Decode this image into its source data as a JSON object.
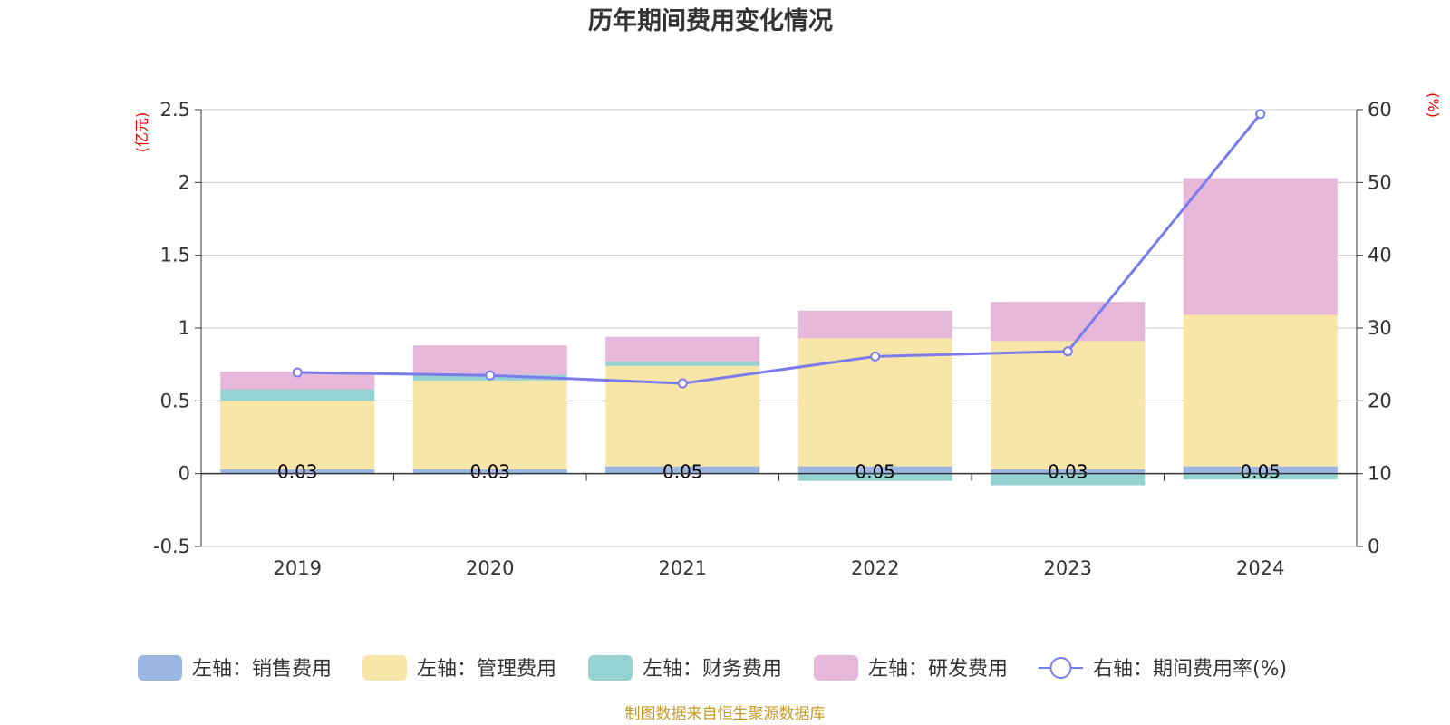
{
  "title": "历年期间费用变化情况",
  "source": "制图数据来自恒生聚源数据库",
  "chart_data": {
    "type": "bar",
    "stacked": true,
    "title": "历年期间费用变化情况",
    "categories": [
      "2019",
      "2020",
      "2021",
      "2022",
      "2023",
      "2024"
    ],
    "left_axis": {
      "unit": "(亿元)",
      "range": [
        -0.5,
        2.5
      ],
      "ticks": [
        "-0.5",
        "0",
        "0.5",
        "1",
        "1.5",
        "2",
        "2.5"
      ],
      "unit_color": "#e60000"
    },
    "right_axis": {
      "unit": "(%)",
      "range": [
        0,
        60
      ],
      "ticks": [
        "0",
        "10",
        "20",
        "30",
        "40",
        "50",
        "60"
      ],
      "unit_color": "#e60000"
    },
    "series": [
      {
        "name": "左轴：销售费用",
        "axis": "left",
        "type": "bar",
        "color": "#9bb6e2",
        "values": [
          0.03,
          0.03,
          0.05,
          0.05,
          0.03,
          0.05
        ],
        "labels": [
          "0.03",
          "0.03",
          "0.05",
          "0.05",
          "0.03",
          "0.05"
        ]
      },
      {
        "name": "左轴：管理费用",
        "axis": "left",
        "type": "bar",
        "color": "#f8e6a9",
        "values": [
          0.47,
          0.61,
          0.69,
          0.88,
          0.88,
          1.04
        ]
      },
      {
        "name": "左轴：财务费用",
        "axis": "left",
        "type": "bar",
        "color": "#95d3d3",
        "values": [
          0.08,
          0.04,
          0.03,
          -0.05,
          -0.08,
          -0.04
        ]
      },
      {
        "name": "左轴：研发费用",
        "axis": "left",
        "type": "bar",
        "color": "#e6b9da",
        "values": [
          0.12,
          0.2,
          0.17,
          0.19,
          0.27,
          0.94
        ]
      },
      {
        "name": "右轴：期间费用率(%)",
        "axis": "right",
        "type": "line",
        "color": "#7b7cec",
        "values": [
          23.9,
          23.5,
          22.4,
          26.1,
          26.8,
          59.4
        ]
      }
    ],
    "grid": true,
    "legend": "bottom"
  }
}
